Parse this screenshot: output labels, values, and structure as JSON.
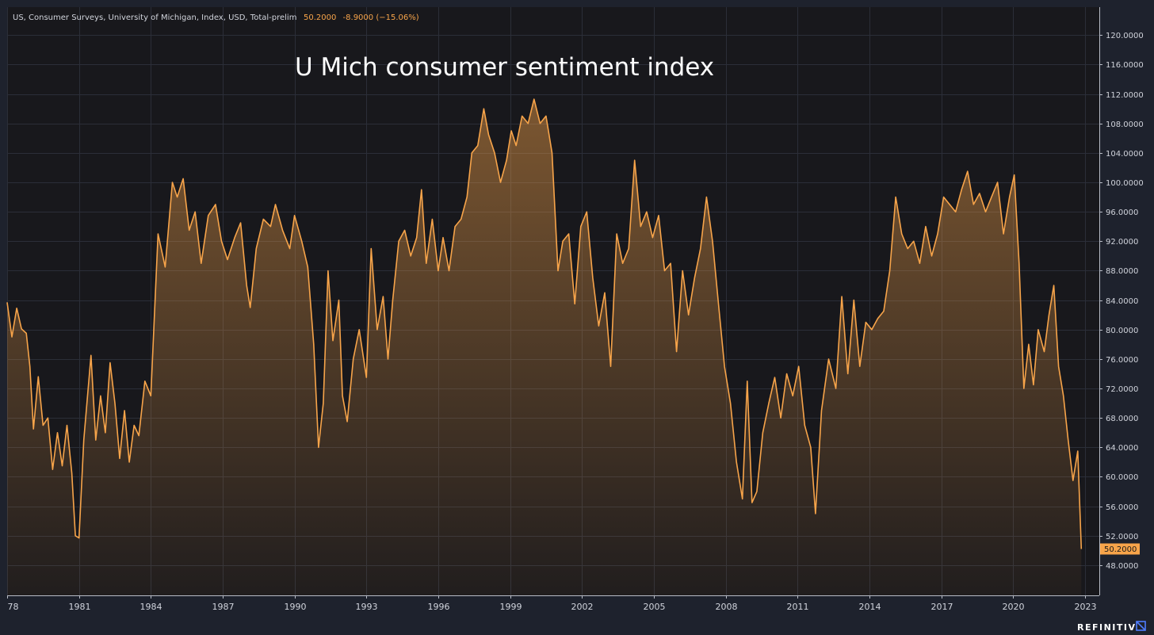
{
  "header": {
    "description": "US, Consumer Surveys, University of Michigan, Index, USD, Total-prelim",
    "last_value": "50.2000",
    "change": "-8.9000 (−15.06%)"
  },
  "brand": {
    "label": "REFINITIV",
    "icon": "refinitiv-logo-icon"
  },
  "colors": {
    "background": "#1e222d",
    "plot_background": "#18181c",
    "line": "#f7a44a",
    "grid": "#2b2e38",
    "axis_text": "#d1d4dc",
    "badge": "#f7a44a"
  },
  "chart_data": {
    "type": "area",
    "title": "U Mich consumer sentiment index",
    "xlabel": "",
    "ylabel": "",
    "x_ticks": [
      "78",
      "1981",
      "1984",
      "1987",
      "1990",
      "1993",
      "1996",
      "1999",
      "2002",
      "2005",
      "2008",
      "2011",
      "2014",
      "2017",
      "2020",
      "2023"
    ],
    "y_ticks": [
      "48.0000",
      "52.0000",
      "56.0000",
      "60.0000",
      "64.0000",
      "68.0000",
      "72.0000",
      "76.0000",
      "80.0000",
      "84.0000",
      "88.0000",
      "92.0000",
      "96.0000",
      "100.0000",
      "104.0000",
      "108.0000",
      "112.0000",
      "116.0000",
      "120.0000"
    ],
    "xlim": [
      1978,
      2023.6
    ],
    "ylim": [
      43.9,
      123.8
    ],
    "grid": true,
    "last_value_label": "50.2000",
    "series": [
      {
        "color": "#f7a44a",
        "points": [
          [
            1978.0,
            83.7
          ],
          [
            1978.2,
            79.0
          ],
          [
            1978.4,
            82.9
          ],
          [
            1978.6,
            80.1
          ],
          [
            1978.8,
            79.5
          ],
          [
            1978.95,
            75.0
          ],
          [
            1979.1,
            66.5
          ],
          [
            1979.3,
            73.6
          ],
          [
            1979.5,
            67.0
          ],
          [
            1979.7,
            68.0
          ],
          [
            1979.9,
            61.0
          ],
          [
            1980.1,
            66.0
          ],
          [
            1980.3,
            61.5
          ],
          [
            1980.5,
            67.0
          ],
          [
            1980.7,
            60.5
          ],
          [
            1980.85,
            52.0
          ],
          [
            1981.0,
            51.7
          ],
          [
            1981.2,
            65.0
          ],
          [
            1981.5,
            76.5
          ],
          [
            1981.7,
            65.0
          ],
          [
            1981.9,
            71.0
          ],
          [
            1982.1,
            66.0
          ],
          [
            1982.3,
            75.5
          ],
          [
            1982.5,
            70.0
          ],
          [
            1982.7,
            62.5
          ],
          [
            1982.9,
            69.0
          ],
          [
            1983.1,
            62.0
          ],
          [
            1983.3,
            67.0
          ],
          [
            1983.5,
            65.6
          ],
          [
            1983.75,
            73.0
          ],
          [
            1984.0,
            71.0
          ],
          [
            1984.3,
            93.0
          ],
          [
            1984.6,
            88.5
          ],
          [
            1984.9,
            100.0
          ],
          [
            1985.1,
            98.0
          ],
          [
            1985.35,
            100.5
          ],
          [
            1985.6,
            93.5
          ],
          [
            1985.85,
            96.0
          ],
          [
            1986.1,
            89.0
          ],
          [
            1986.4,
            95.5
          ],
          [
            1986.7,
            97.0
          ],
          [
            1986.95,
            92.0
          ],
          [
            1987.2,
            89.5
          ],
          [
            1987.5,
            92.5
          ],
          [
            1987.75,
            94.5
          ],
          [
            1988.0,
            86.0
          ],
          [
            1988.15,
            83.0
          ],
          [
            1988.4,
            91.0
          ],
          [
            1988.7,
            95.0
          ],
          [
            1989.0,
            94.0
          ],
          [
            1989.2,
            97.0
          ],
          [
            1989.5,
            93.5
          ],
          [
            1989.8,
            91.0
          ],
          [
            1990.0,
            95.5
          ],
          [
            1990.3,
            92.0
          ],
          [
            1990.55,
            88.5
          ],
          [
            1990.8,
            78.0
          ],
          [
            1991.0,
            64.0
          ],
          [
            1991.2,
            70.0
          ],
          [
            1991.4,
            88.0
          ],
          [
            1991.6,
            78.5
          ],
          [
            1991.85,
            84.0
          ],
          [
            1992.0,
            71.0
          ],
          [
            1992.2,
            67.5
          ],
          [
            1992.45,
            76.0
          ],
          [
            1992.7,
            80.0
          ],
          [
            1993.0,
            73.5
          ],
          [
            1993.2,
            91.0
          ],
          [
            1993.45,
            80.0
          ],
          [
            1993.7,
            84.5
          ],
          [
            1993.9,
            76.0
          ],
          [
            1994.1,
            84.0
          ],
          [
            1994.35,
            92.0
          ],
          [
            1994.6,
            93.5
          ],
          [
            1994.85,
            90.0
          ],
          [
            1995.1,
            92.5
          ],
          [
            1995.3,
            99.0
          ],
          [
            1995.5,
            89.0
          ],
          [
            1995.75,
            95.0
          ],
          [
            1996.0,
            88.0
          ],
          [
            1996.2,
            92.5
          ],
          [
            1996.45,
            88.0
          ],
          [
            1996.7,
            94.0
          ],
          [
            1996.95,
            95.0
          ],
          [
            1997.2,
            98.0
          ],
          [
            1997.4,
            104.0
          ],
          [
            1997.65,
            105.0
          ],
          [
            1997.9,
            110.0
          ],
          [
            1998.1,
            106.5
          ],
          [
            1998.35,
            104.0
          ],
          [
            1998.6,
            100.0
          ],
          [
            1998.85,
            103.0
          ],
          [
            1999.05,
            107.0
          ],
          [
            1999.25,
            105.0
          ],
          [
            1999.5,
            109.0
          ],
          [
            1999.75,
            108.0
          ],
          [
            2000.0,
            111.3
          ],
          [
            2000.25,
            108.0
          ],
          [
            2000.5,
            109.0
          ],
          [
            2000.75,
            104.0
          ],
          [
            2001.0,
            88.0
          ],
          [
            2001.2,
            92.0
          ],
          [
            2001.45,
            93.0
          ],
          [
            2001.7,
            83.5
          ],
          [
            2001.95,
            94.0
          ],
          [
            2002.2,
            96.0
          ],
          [
            2002.45,
            87.0
          ],
          [
            2002.7,
            80.5
          ],
          [
            2002.95,
            85.0
          ],
          [
            2003.2,
            75.0
          ],
          [
            2003.45,
            93.0
          ],
          [
            2003.7,
            89.0
          ],
          [
            2003.95,
            91.0
          ],
          [
            2004.2,
            103.0
          ],
          [
            2004.45,
            94.0
          ],
          [
            2004.7,
            96.0
          ],
          [
            2004.95,
            92.5
          ],
          [
            2005.2,
            95.5
          ],
          [
            2005.45,
            88.0
          ],
          [
            2005.7,
            89.0
          ],
          [
            2005.95,
            77.0
          ],
          [
            2006.2,
            88.0
          ],
          [
            2006.45,
            82.0
          ],
          [
            2006.7,
            87.0
          ],
          [
            2006.95,
            91.0
          ],
          [
            2007.2,
            98.0
          ],
          [
            2007.45,
            92.0
          ],
          [
            2007.7,
            83.5
          ],
          [
            2007.95,
            75.0
          ],
          [
            2008.2,
            70.0
          ],
          [
            2008.45,
            62.0
          ],
          [
            2008.7,
            57.0
          ],
          [
            2008.9,
            73.0
          ],
          [
            2009.1,
            56.5
          ],
          [
            2009.3,
            58.0
          ],
          [
            2009.55,
            66.0
          ],
          [
            2009.8,
            70.0
          ],
          [
            2010.05,
            73.5
          ],
          [
            2010.3,
            68.0
          ],
          [
            2010.55,
            74.0
          ],
          [
            2010.8,
            71.0
          ],
          [
            2011.05,
            75.0
          ],
          [
            2011.3,
            67.0
          ],
          [
            2011.55,
            64.0
          ],
          [
            2011.75,
            55.0
          ],
          [
            2012.0,
            69.0
          ],
          [
            2012.3,
            76.0
          ],
          [
            2012.6,
            72.0
          ],
          [
            2012.85,
            84.5
          ],
          [
            2013.1,
            74.0
          ],
          [
            2013.35,
            84.0
          ],
          [
            2013.6,
            75.0
          ],
          [
            2013.85,
            81.0
          ],
          [
            2014.1,
            80.0
          ],
          [
            2014.35,
            81.5
          ],
          [
            2014.6,
            82.5
          ],
          [
            2014.85,
            88.0
          ],
          [
            2015.1,
            98.0
          ],
          [
            2015.35,
            93.0
          ],
          [
            2015.6,
            91.0
          ],
          [
            2015.85,
            92.0
          ],
          [
            2016.1,
            89.0
          ],
          [
            2016.35,
            94.0
          ],
          [
            2016.6,
            90.0
          ],
          [
            2016.85,
            93.0
          ],
          [
            2017.1,
            98.0
          ],
          [
            2017.35,
            97.0
          ],
          [
            2017.6,
            96.0
          ],
          [
            2017.85,
            99.0
          ],
          [
            2018.1,
            101.5
          ],
          [
            2018.35,
            97.0
          ],
          [
            2018.6,
            98.5
          ],
          [
            2018.85,
            96.0
          ],
          [
            2019.1,
            98.0
          ],
          [
            2019.35,
            100.0
          ],
          [
            2019.6,
            93.0
          ],
          [
            2019.85,
            98.0
          ],
          [
            2020.05,
            101.0
          ],
          [
            2020.25,
            89.0
          ],
          [
            2020.45,
            72.0
          ],
          [
            2020.65,
            78.0
          ],
          [
            2020.85,
            72.5
          ],
          [
            2021.05,
            80.0
          ],
          [
            2021.3,
            77.0
          ],
          [
            2021.5,
            82.0
          ],
          [
            2021.7,
            86.0
          ],
          [
            2021.9,
            75.0
          ],
          [
            2022.1,
            71.0
          ],
          [
            2022.3,
            65.0
          ],
          [
            2022.5,
            59.5
          ],
          [
            2022.7,
            63.5
          ],
          [
            2022.85,
            50.2
          ]
        ]
      }
    ]
  }
}
